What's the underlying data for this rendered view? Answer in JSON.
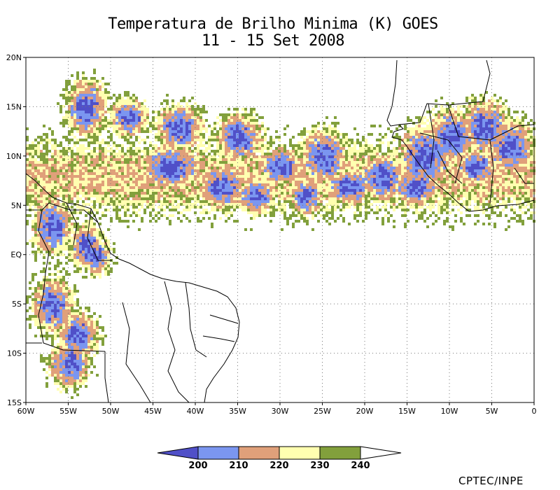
{
  "title_line1": "Temperatura de Brilho Minima (K) GOES",
  "title_line2": "11 - 15 Set 2008",
  "credit": "CPTEC/INPE",
  "map": {
    "lon_range": [
      -60,
      0
    ],
    "lat_range": [
      -15,
      20
    ],
    "lon_ticks": [
      {
        "value": -60,
        "label": "60W"
      },
      {
        "value": -55,
        "label": "55W"
      },
      {
        "value": -50,
        "label": "50W"
      },
      {
        "value": -45,
        "label": "45W"
      },
      {
        "value": -40,
        "label": "40W"
      },
      {
        "value": -35,
        "label": "35W"
      },
      {
        "value": -30,
        "label": "30W"
      },
      {
        "value": -25,
        "label": "25W"
      },
      {
        "value": -20,
        "label": "20W"
      },
      {
        "value": -15,
        "label": "15W"
      },
      {
        "value": -10,
        "label": "10W"
      },
      {
        "value": -5,
        "label": "5W"
      },
      {
        "value": 0,
        "label": "0"
      }
    ],
    "lat_ticks": [
      {
        "value": 20,
        "label": "20N"
      },
      {
        "value": 15,
        "label": "15N"
      },
      {
        "value": 10,
        "label": "10N"
      },
      {
        "value": 5,
        "label": "5N"
      },
      {
        "value": 0,
        "label": "EQ"
      },
      {
        "value": -5,
        "label": "5S"
      },
      {
        "value": -10,
        "label": "10S"
      },
      {
        "value": -15,
        "label": "15S"
      }
    ],
    "grid": true
  },
  "colorbar": {
    "levels": [
      "200",
      "210",
      "220",
      "230",
      "240"
    ],
    "colors": [
      "#5050c8",
      "#7b96f0",
      "#e0a07a",
      "#ffffb0",
      "#82a03c",
      "#ffffff"
    ]
  }
}
